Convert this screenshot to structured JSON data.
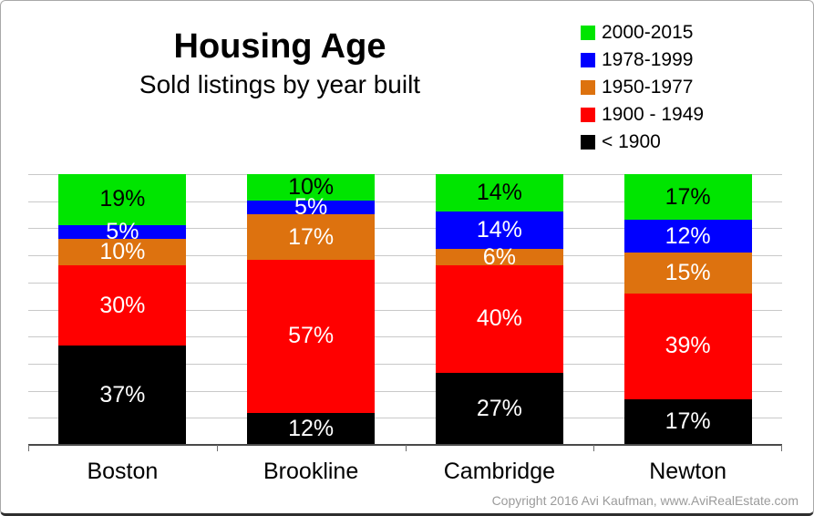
{
  "title": {
    "main": "Housing Age",
    "subtitle": "Sold listings by year built"
  },
  "footer": {
    "copyright": "Copyright 2016 Avi Kaufman, www.AviRealEstate.com"
  },
  "colors": {
    "green": "#00e500",
    "blue": "#0000ff",
    "orange": "#dd720f",
    "red": "#ff0000",
    "black": "#000000",
    "gridline": "#c9c9c9",
    "copyright_gray": "#9b9b9b"
  },
  "chart_data": {
    "type": "bar",
    "stacked": true,
    "title": "Housing Age",
    "subtitle": "Sold listings by year built",
    "categories": [
      "Boston",
      "Brookline",
      "Cambridge",
      "Newton"
    ],
    "series": [
      {
        "name": "2000-2015",
        "color": "#00e500",
        "label_color": "#000000",
        "values": [
          19,
          10,
          14,
          17
        ]
      },
      {
        "name": "1978-1999",
        "color": "#0000ff",
        "label_color": "#ffffff",
        "values": [
          5,
          5,
          14,
          12
        ]
      },
      {
        "name": "1950-1977",
        "color": "#dd720f",
        "label_color": "#ffffff",
        "values": [
          10,
          17,
          6,
          15
        ]
      },
      {
        "name": "1900 - 1949",
        "color": "#ff0000",
        "label_color": "#ffffff",
        "values": [
          30,
          57,
          40,
          39
        ]
      },
      {
        "name": "< 1900",
        "color": "#000000",
        "label_color": "#ffffff",
        "values": [
          37,
          12,
          27,
          17
        ]
      }
    ],
    "value_suffix": "%",
    "ylim": [
      0,
      100
    ],
    "grid": {
      "horizontal": true,
      "interval_percent": 10
    },
    "legend_position": "top-right",
    "segment_order": "top-to-bottom: newest (2000-2015) at top, < 1900 at bottom",
    "xlabel": "",
    "ylabel": ""
  }
}
